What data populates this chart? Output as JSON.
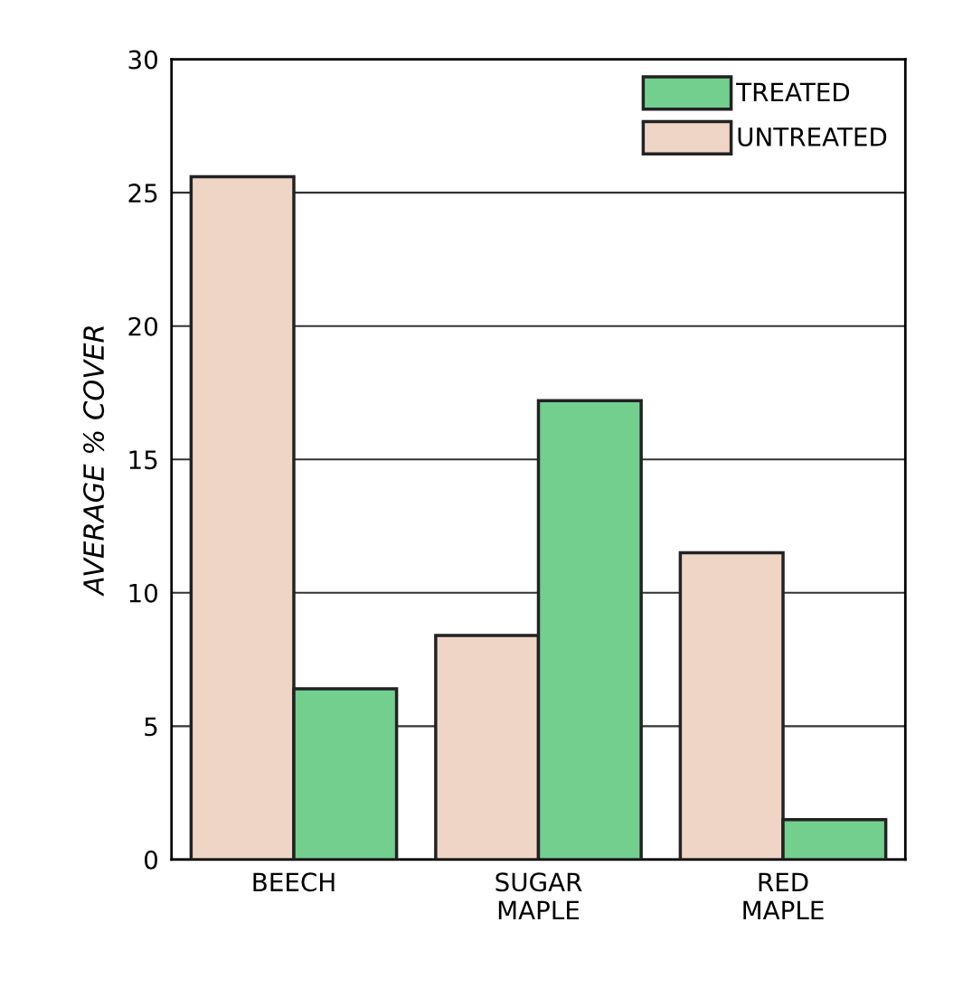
{
  "chart_data": {
    "type": "bar",
    "ylabel": "AVERAGE % COVER",
    "categories": [
      "BEECH",
      "SUGAR\nMAPLE",
      "RED\nMAPLE"
    ],
    "series": [
      {
        "name": "UNTREATED",
        "color": "#efd5c6",
        "values": [
          25.6,
          8.4,
          11.5
        ]
      },
      {
        "name": "TREATED",
        "color": "#72cf8e",
        "values": [
          6.4,
          17.2,
          1.5
        ]
      }
    ],
    "ylim": [
      0,
      30
    ],
    "yticks": [
      0,
      5,
      10,
      15,
      20,
      25,
      30
    ],
    "grid": "y",
    "legend": "top right"
  }
}
